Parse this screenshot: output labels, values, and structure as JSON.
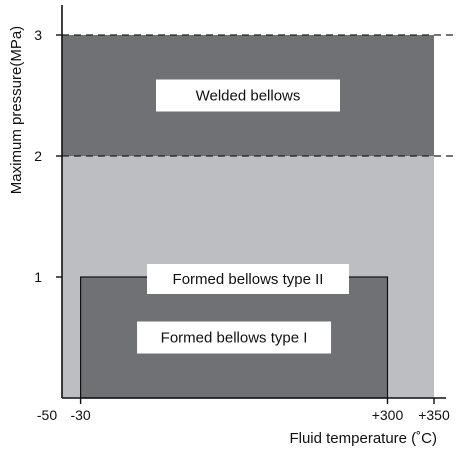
{
  "chart_data": {
    "type": "area",
    "title": "",
    "xlabel": "Fluid temperature (˚C)",
    "ylabel": "Maximum pressure(MPa)",
    "xlim": [
      -50,
      350
    ],
    "ylim": [
      0,
      3
    ],
    "grid": false,
    "x_ticks": [
      {
        "value": -50,
        "label": "-50"
      },
      {
        "value": -30,
        "label": "-30"
      },
      {
        "value": 300,
        "label": "+300"
      },
      {
        "value": 350,
        "label": "+350"
      }
    ],
    "y_ticks": [
      {
        "value": 1,
        "label": "1"
      },
      {
        "value": 2,
        "label": "2"
      },
      {
        "value": 3,
        "label": "3"
      }
    ],
    "dashed_lines_y": [
      2,
      3
    ],
    "regions": [
      {
        "name": "Formed bellows type II",
        "x": [
          -50,
          350
        ],
        "y": [
          0,
          2
        ],
        "color": "#bdbec1"
      },
      {
        "name": "Welded bellows",
        "x": [
          -50,
          350
        ],
        "y": [
          2,
          3
        ],
        "color": "#707174"
      },
      {
        "name": "Formed bellows type I",
        "x": [
          -30,
          300
        ],
        "y": [
          0,
          1
        ],
        "color": "#707174"
      }
    ]
  }
}
